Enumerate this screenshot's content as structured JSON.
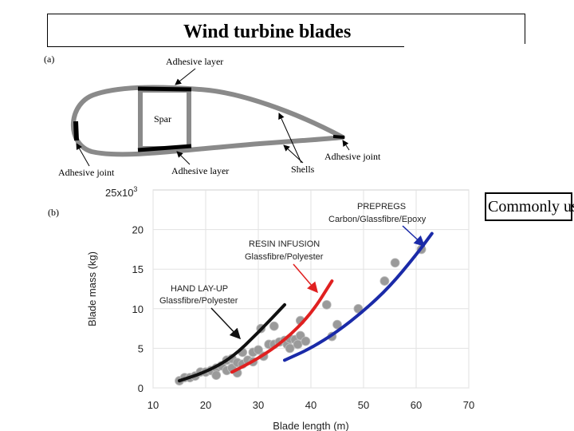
{
  "title": "Wind turbine blades",
  "side_text": "Commonly used",
  "panel_a": {
    "tag": "(a)",
    "labels": {
      "adhesive_layer_top": "Adhesive layer",
      "spar": "Spar",
      "adhesive_joint_left": "Adhesive joint",
      "adhesive_layer_bottom": "Adhesive layer",
      "shells": "Shells",
      "adhesive_joint_right": "Adhesive joint"
    }
  },
  "panel_b": {
    "tag": "(b)",
    "annotations": {
      "prepregs_title": "PREPREGS",
      "prepregs_sub": "Carbon/Glassfibre/Epoxy",
      "resin_title": "RESIN INFUSION",
      "resin_sub": "Glassfibre/Polyester",
      "hand_title": "HAND LAY-UP",
      "hand_sub": "Glassfibre/Polyester"
    }
  },
  "colors": {
    "hand_layup": "#111111",
    "resin_infusion": "#e02020",
    "prepregs": "#1a2aa8",
    "points": "#9a9a9a",
    "blade_outline": "#8a8a8a"
  },
  "chart_data": {
    "type": "scatter",
    "title": "",
    "xlabel": "Blade length (m)",
    "ylabel": "Blade mass (kg)",
    "y_multiplier_label": "25x10",
    "y_multiplier_exp": "3",
    "xlim": [
      10,
      70
    ],
    "ylim": [
      0,
      25
    ],
    "xticks": [
      10,
      20,
      30,
      40,
      50,
      60,
      70
    ],
    "yticks": [
      0,
      5,
      10,
      15,
      20
    ],
    "grid": true,
    "points": [
      [
        15,
        0.9
      ],
      [
        16,
        1.3
      ],
      [
        17,
        1.3
      ],
      [
        18,
        1.5
      ],
      [
        19,
        2
      ],
      [
        20,
        2
      ],
      [
        21,
        2.2
      ],
      [
        22,
        2.5
      ],
      [
        22,
        1.6
      ],
      [
        23,
        2.8
      ],
      [
        24,
        3.5
      ],
      [
        24,
        2.2
      ],
      [
        25,
        3.7
      ],
      [
        25,
        2.5
      ],
      [
        26,
        1.9
      ],
      [
        26,
        3.2
      ],
      [
        27,
        4.5
      ],
      [
        27,
        3
      ],
      [
        28,
        3.5
      ],
      [
        29,
        4.5
      ],
      [
        29,
        3.3
      ],
      [
        30,
        4.8
      ],
      [
        30.5,
        7.5
      ],
      [
        31,
        4
      ],
      [
        32,
        5.5
      ],
      [
        33,
        7.8
      ],
      [
        33,
        5.5
      ],
      [
        34,
        5.8
      ],
      [
        35,
        6
      ],
      [
        35.5,
        5.5
      ],
      [
        36,
        5
      ],
      [
        36,
        6.2
      ],
      [
        37,
        6.1
      ],
      [
        37.5,
        5.5
      ],
      [
        38,
        8.5
      ],
      [
        38,
        6.6
      ],
      [
        39,
        5.9
      ],
      [
        43,
        10.5
      ],
      [
        44,
        6.5
      ],
      [
        45,
        8
      ],
      [
        49,
        10
      ],
      [
        54,
        13.5
      ],
      [
        56,
        15.8
      ],
      [
        61,
        17.5
      ]
    ],
    "series": [
      {
        "name": "HAND LAY-UP",
        "x": [
          15,
          20,
          25,
          30,
          35
        ],
        "y": [
          0.9,
          2.0,
          3.8,
          7.0,
          10.5
        ]
      },
      {
        "name": "RESIN INFUSION",
        "x": [
          25,
          30,
          35,
          40,
          44
        ],
        "y": [
          2.0,
          3.7,
          6.0,
          9.3,
          13.5
        ]
      },
      {
        "name": "PREPREGS",
        "x": [
          35,
          40,
          45,
          50,
          55,
          60,
          63
        ],
        "y": [
          3.5,
          5.0,
          7.1,
          9.7,
          12.8,
          16.8,
          19.5
        ]
      }
    ]
  }
}
